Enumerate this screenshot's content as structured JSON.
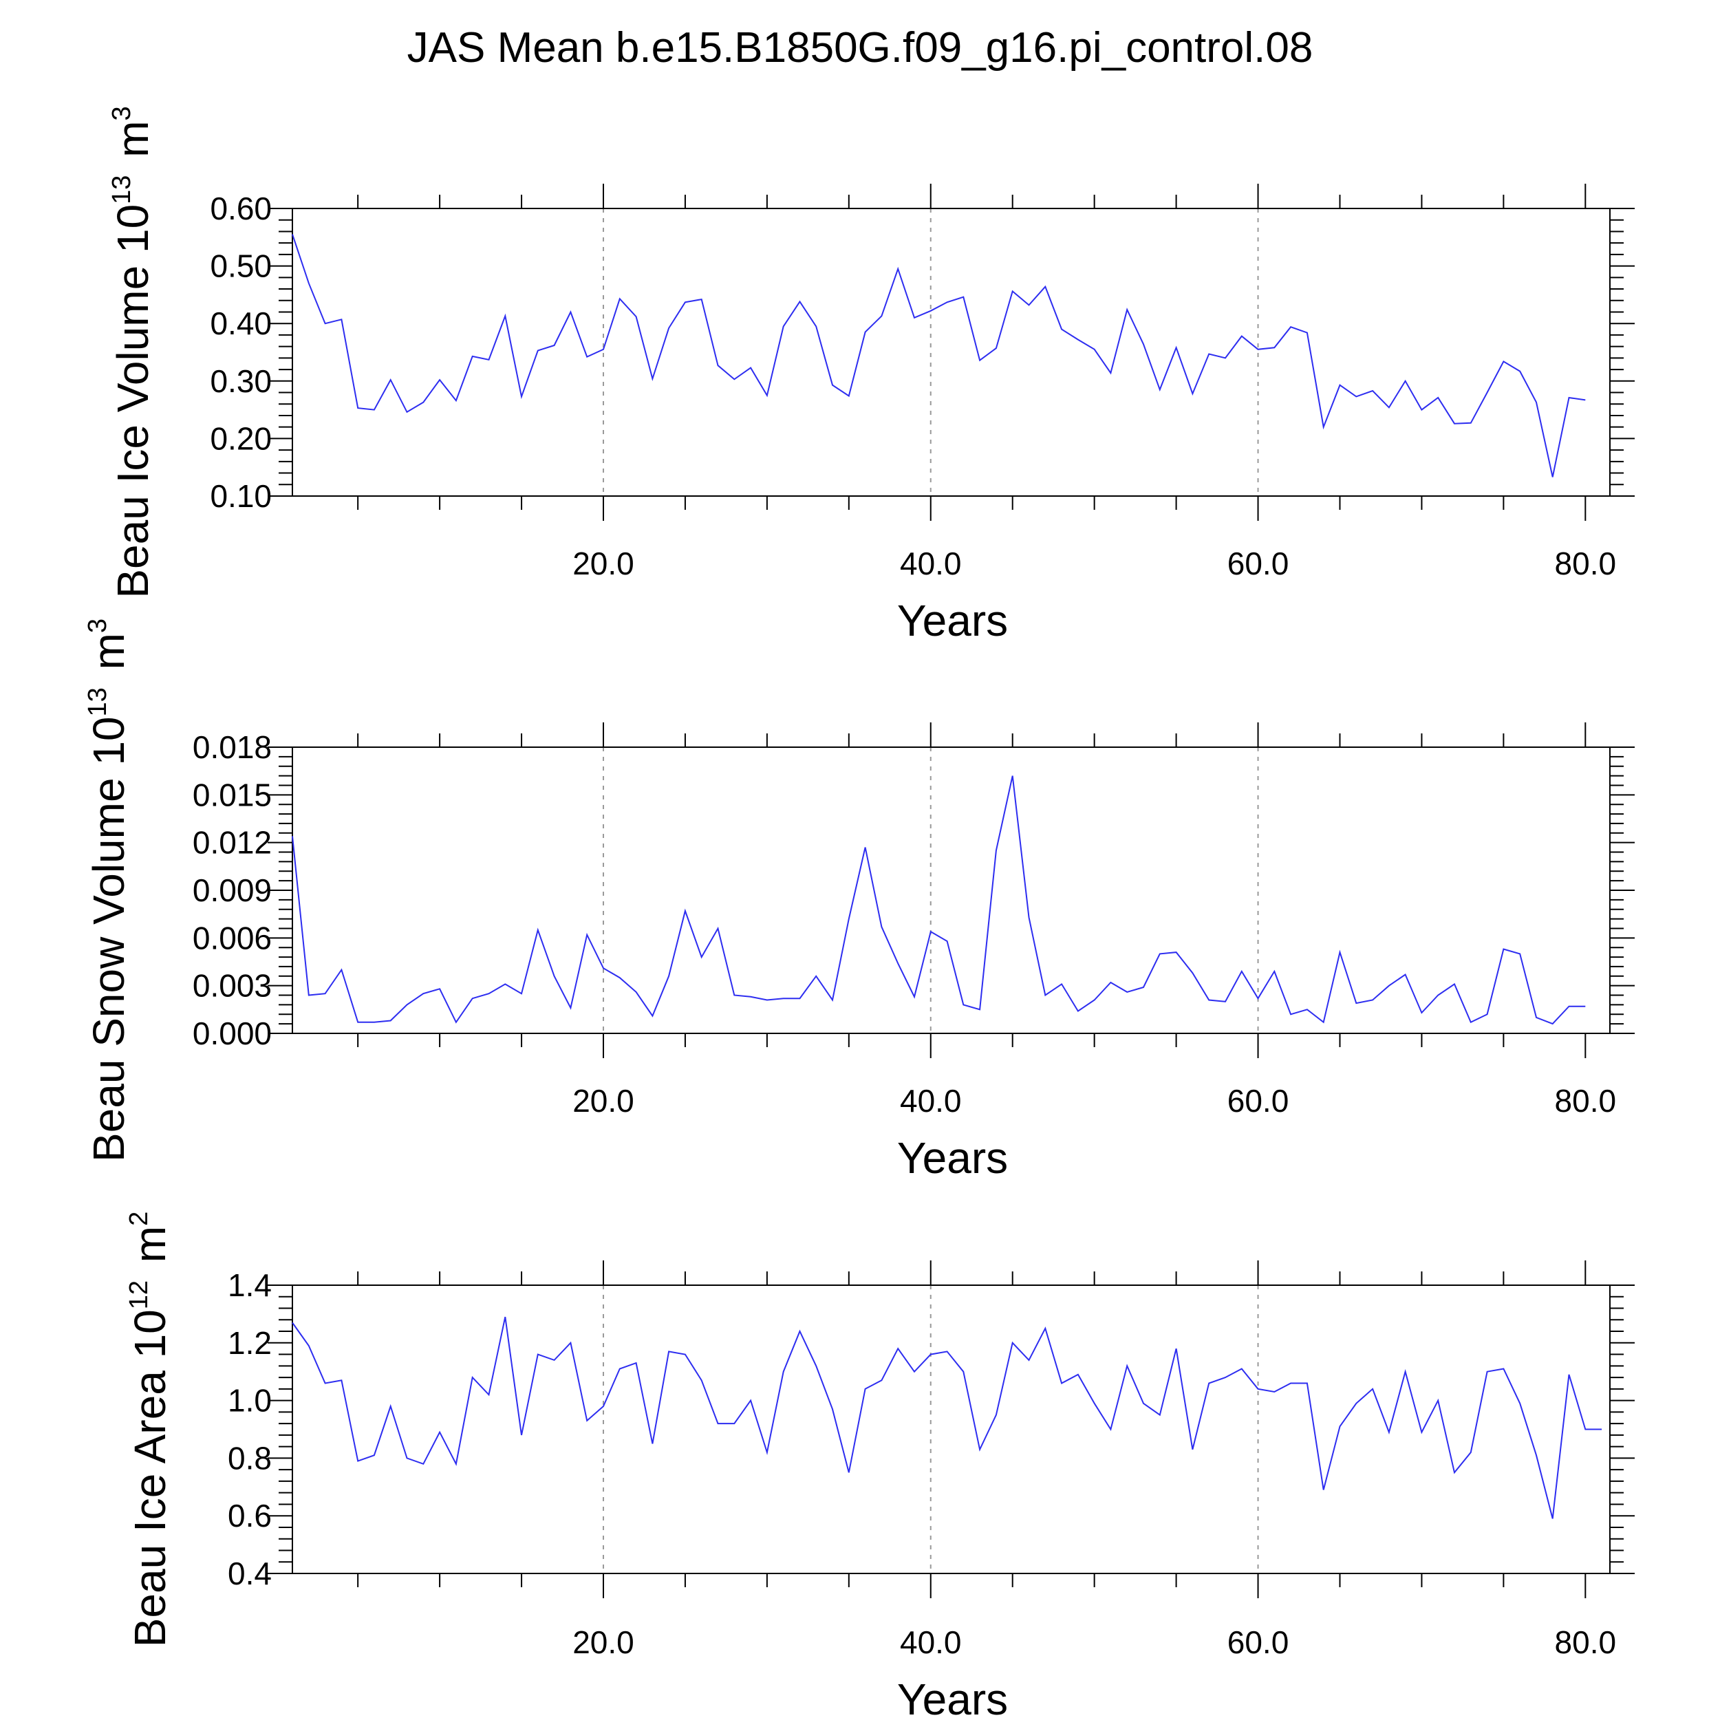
{
  "title": "JAS Mean b.e15.B1850G.f09_g16.pi_control.08",
  "chart_data": [
    {
      "type": "line",
      "xlabel": "Years",
      "ylabel": "Beau Ice Volume 10",
      "ylabel_exponent": "13",
      "ylabel_unit": "m",
      "ylabel_unit_exponent": "3",
      "xlim": [
        1,
        81.5
      ],
      "ylim": [
        0.1,
        0.6
      ],
      "x_ticks": [
        20,
        40,
        60,
        80
      ],
      "x_tick_labels": [
        "20.0",
        "40.0",
        "60.0",
        "80.0"
      ],
      "y_ticks": [
        0.1,
        0.2,
        0.3,
        0.4,
        0.5,
        0.6
      ],
      "y_tick_labels": [
        "0.10",
        "0.20",
        "0.30",
        "0.40",
        "0.50",
        "0.60"
      ],
      "grid_x": [
        20,
        40,
        60
      ],
      "color": "#2d2df0",
      "x": [
        1,
        2,
        3,
        4,
        5,
        6,
        7,
        8,
        9,
        10,
        11,
        12,
        13,
        14,
        15,
        16,
        17,
        18,
        19,
        20,
        21,
        22,
        23,
        24,
        25,
        26,
        27,
        28,
        29,
        30,
        31,
        32,
        33,
        34,
        35,
        36,
        37,
        38,
        39,
        40,
        41,
        42,
        43,
        44,
        45,
        46,
        47,
        48,
        49,
        50,
        51,
        52,
        53,
        54,
        55,
        56,
        57,
        58,
        59,
        60,
        61,
        62,
        63,
        64,
        65,
        66,
        67,
        68,
        69,
        70,
        71,
        72,
        73,
        74,
        75,
        76,
        77,
        78,
        79,
        80
      ],
      "values": [
        0.555,
        0.47,
        0.4,
        0.407,
        0.253,
        0.25,
        0.302,
        0.246,
        0.263,
        0.302,
        0.266,
        0.343,
        0.337,
        0.413,
        0.273,
        0.353,
        0.362,
        0.42,
        0.342,
        0.355,
        0.443,
        0.412,
        0.304,
        0.392,
        0.437,
        0.442,
        0.327,
        0.303,
        0.323,
        0.275,
        0.395,
        0.438,
        0.395,
        0.293,
        0.274,
        0.385,
        0.413,
        0.495,
        0.41,
        0.422,
        0.437,
        0.446,
        0.336,
        0.357,
        0.456,
        0.432,
        0.464,
        0.39,
        0.372,
        0.355,
        0.314,
        0.424,
        0.364,
        0.285,
        0.358,
        0.278,
        0.347,
        0.34,
        0.378,
        0.355,
        0.358,
        0.394,
        0.384,
        0.22,
        0.293,
        0.273,
        0.283,
        0.254,
        0.3,
        0.25,
        0.271,
        0.226,
        0.227,
        0.28,
        0.334,
        0.317,
        0.263,
        0.133,
        0.271,
        0.267
      ]
    },
    {
      "type": "line",
      "xlabel": "Years",
      "ylabel": "Beau Snow Volume 10",
      "ylabel_exponent": "13",
      "ylabel_unit": "m",
      "ylabel_unit_exponent": "3",
      "xlim": [
        1,
        81.5
      ],
      "ylim": [
        0.0,
        0.018
      ],
      "x_ticks": [
        20,
        40,
        60,
        80
      ],
      "x_tick_labels": [
        "20.0",
        "40.0",
        "60.0",
        "80.0"
      ],
      "y_ticks": [
        0.0,
        0.003,
        0.006,
        0.009,
        0.012,
        0.015,
        0.018
      ],
      "y_tick_labels": [
        "0.000",
        "0.003",
        "0.006",
        "0.009",
        "0.012",
        "0.015",
        "0.018"
      ],
      "grid_x": [
        20,
        40,
        60
      ],
      "color": "#2d2df0",
      "x": [
        1,
        2,
        3,
        4,
        5,
        6,
        7,
        8,
        9,
        10,
        11,
        12,
        13,
        14,
        15,
        16,
        17,
        18,
        19,
        20,
        21,
        22,
        23,
        24,
        25,
        26,
        27,
        28,
        29,
        30,
        31,
        32,
        33,
        34,
        35,
        36,
        37,
        38,
        39,
        40,
        41,
        42,
        43,
        44,
        45,
        46,
        47,
        48,
        49,
        50,
        51,
        52,
        53,
        54,
        55,
        56,
        57,
        58,
        59,
        60,
        61,
        62,
        63,
        64,
        65,
        66,
        67,
        68,
        69,
        70,
        71,
        72,
        73,
        74,
        75,
        76,
        77,
        78,
        79,
        80
      ],
      "values": [
        0.0124,
        0.0024,
        0.0025,
        0.004,
        0.0007,
        0.0007,
        0.0008,
        0.0018,
        0.0025,
        0.0028,
        0.0007,
        0.0022,
        0.0025,
        0.0031,
        0.0025,
        0.0065,
        0.0036,
        0.0016,
        0.0062,
        0.0041,
        0.0035,
        0.0026,
        0.0011,
        0.0036,
        0.0077,
        0.0048,
        0.0066,
        0.0024,
        0.0023,
        0.0021,
        0.0022,
        0.0022,
        0.0036,
        0.0021,
        0.0072,
        0.0117,
        0.0067,
        0.0044,
        0.0023,
        0.0064,
        0.0058,
        0.0018,
        0.0015,
        0.0115,
        0.0162,
        0.0073,
        0.0024,
        0.0031,
        0.0014,
        0.0021,
        0.0032,
        0.0026,
        0.0029,
        0.005,
        0.0051,
        0.0038,
        0.0021,
        0.002,
        0.0039,
        0.0022,
        0.0039,
        0.0012,
        0.0015,
        0.0007,
        0.0051,
        0.0019,
        0.0021,
        0.003,
        0.0037,
        0.0013,
        0.0024,
        0.0031,
        0.0007,
        0.0012,
        0.0053,
        0.005,
        0.001,
        0.0006,
        0.0017,
        0.0017
      ]
    },
    {
      "type": "line",
      "xlabel": "Years",
      "ylabel": "Beau Ice Area 10",
      "ylabel_exponent": "12",
      "ylabel_unit": "m",
      "ylabel_unit_exponent": "2",
      "xlim": [
        1,
        81.5
      ],
      "ylim": [
        0.4,
        1.4
      ],
      "x_ticks": [
        20,
        40,
        60,
        80
      ],
      "x_tick_labels": [
        "20.0",
        "40.0",
        "60.0",
        "80.0"
      ],
      "y_ticks": [
        0.4,
        0.6,
        0.8,
        1.0,
        1.2,
        1.4
      ],
      "y_tick_labels": [
        "0.4",
        "0.6",
        "0.8",
        "1.0",
        "1.2",
        "1.4"
      ],
      "grid_x": [
        20,
        40,
        60
      ],
      "color": "#2d2df0",
      "x": [
        1,
        2,
        3,
        4,
        5,
        6,
        7,
        8,
        9,
        10,
        11,
        12,
        13,
        14,
        15,
        16,
        17,
        18,
        19,
        20,
        21,
        22,
        23,
        24,
        25,
        26,
        27,
        28,
        29,
        30,
        31,
        32,
        33,
        34,
        35,
        36,
        37,
        38,
        39,
        40,
        41,
        42,
        43,
        44,
        45,
        46,
        47,
        48,
        49,
        50,
        51,
        52,
        53,
        54,
        55,
        56,
        57,
        58,
        59,
        60,
        61,
        62,
        63,
        64,
        65,
        66,
        67,
        68,
        69,
        70,
        71,
        72,
        73,
        74,
        75,
        76,
        77,
        78,
        79,
        80,
        81
      ],
      "values": [
        1.27,
        1.19,
        1.06,
        1.07,
        0.79,
        0.81,
        0.98,
        0.8,
        0.78,
        0.89,
        0.78,
        1.08,
        1.02,
        1.29,
        0.88,
        1.16,
        1.14,
        1.2,
        0.93,
        0.98,
        1.11,
        1.13,
        0.85,
        1.17,
        1.16,
        1.07,
        0.92,
        0.92,
        1.0,
        0.82,
        1.1,
        1.24,
        1.12,
        0.97,
        0.75,
        1.04,
        1.07,
        1.18,
        1.1,
        1.16,
        1.17,
        1.1,
        0.83,
        0.95,
        1.2,
        1.14,
        1.25,
        1.06,
        1.09,
        0.99,
        0.9,
        1.12,
        0.99,
        0.95,
        1.18,
        0.83,
        1.06,
        1.08,
        1.11,
        1.04,
        1.03,
        1.06,
        1.06,
        0.69,
        0.91,
        0.99,
        1.04,
        0.89,
        1.1,
        0.89,
        1.0,
        0.75,
        0.82,
        1.1,
        1.11,
        0.99,
        0.81,
        0.59,
        1.09,
        0.9,
        0.9
      ]
    }
  ]
}
